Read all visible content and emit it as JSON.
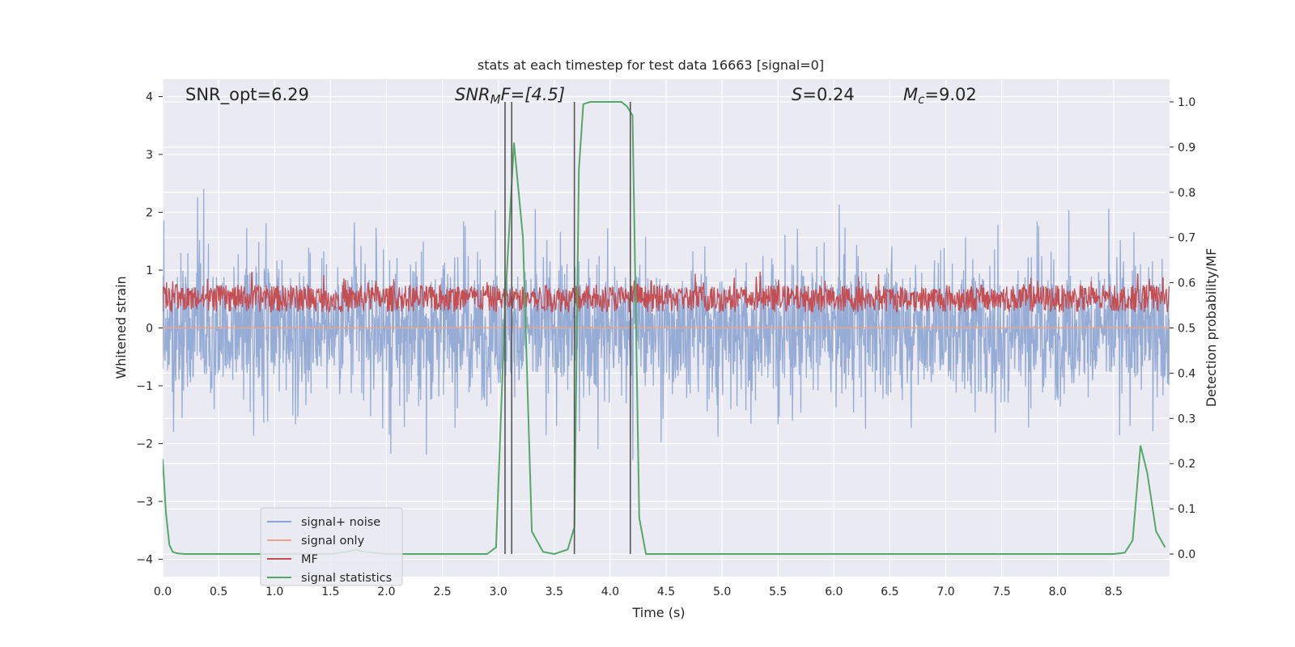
{
  "chart_data": {
    "type": "line",
    "title": "stats at each timestep for test data 16663 [signal=0]",
    "xlabel": "Time (s)",
    "ylabel_left": "Whitened strain",
    "ylabel_right": "Detection probability/MF",
    "xlim": [
      0.0,
      9.0
    ],
    "ylim_left": [
      -4.3,
      4.3
    ],
    "ylim_right": [
      -0.05,
      1.05
    ],
    "xticks": [
      "0.0",
      "0.5",
      "1.0",
      "1.5",
      "2.0",
      "2.5",
      "3.0",
      "3.5",
      "4.0",
      "4.5",
      "5.0",
      "5.5",
      "6.0",
      "6.5",
      "7.0",
      "7.5",
      "8.0",
      "8.5"
    ],
    "yticks_left": [
      "4",
      "3",
      "2",
      "1",
      "0",
      "−1",
      "−2",
      "−3",
      "−4"
    ],
    "yticks_right": [
      "1.0",
      "0.9",
      "0.8",
      "0.7",
      "0.6",
      "0.5",
      "0.4",
      "0.3",
      "0.2",
      "0.1",
      "0.0"
    ],
    "grid": true,
    "legend_position": "lower left",
    "annotations": {
      "snr_opt": "SNR_opt=6.29",
      "snr_mf_base": "SNR",
      "snr_mf_sub": "M",
      "snr_mf_rest": "F=[4.5]",
      "spin_sym": "S",
      "spin_val": "=0.24",
      "mc_sym": "M",
      "mc_sub": "c",
      "mc_val": "=9.02"
    },
    "vlines": [
      3.06,
      3.12,
      3.68,
      4.18
    ],
    "series": [
      {
        "name": "signal+ noise",
        "color": "#8ea5d1",
        "axis": "left",
        "description_range": [
          -4.0,
          4.0
        ]
      },
      {
        "name": "signal only",
        "color": "#e8a58a",
        "axis": "left",
        "x": [
          0.0,
          9.0
        ],
        "y": [
          0.0,
          0.0
        ]
      },
      {
        "name": "MF",
        "color": "#c44e52",
        "axis": "right",
        "description_range": [
          0.5,
          0.64
        ]
      },
      {
        "name": "signal statistics",
        "color": "#55a868",
        "axis": "right",
        "x": [
          0.0,
          0.03,
          0.06,
          0.09,
          0.12,
          0.15,
          0.2,
          0.3,
          0.5,
          1.0,
          1.5,
          1.65,
          1.72,
          1.8,
          2.0,
          2.5,
          2.9,
          2.98,
          3.06,
          3.14,
          3.22,
          3.3,
          3.4,
          3.5,
          3.62,
          3.68,
          3.72,
          3.76,
          3.82,
          3.9,
          4.0,
          4.1,
          4.15,
          4.2,
          4.26,
          4.32,
          4.4,
          4.5,
          5.0,
          6.0,
          7.0,
          8.0,
          8.5,
          8.6,
          8.67,
          8.74,
          8.8,
          8.88,
          8.96
        ],
        "y": [
          0.21,
          0.09,
          0.02,
          0.005,
          0.002,
          0.001,
          0.0,
          0.0,
          0.0,
          0.0,
          0.0,
          0.005,
          0.01,
          0.005,
          0.0,
          0.0,
          0.0,
          0.015,
          0.55,
          0.91,
          0.7,
          0.05,
          0.005,
          0.0,
          0.01,
          0.06,
          0.85,
          0.995,
          1.0,
          1.0,
          1.0,
          1.0,
          0.99,
          0.97,
          0.08,
          0.0,
          0.0,
          0.0,
          0.0,
          0.0,
          0.0,
          0.0,
          0.0,
          0.003,
          0.03,
          0.24,
          0.18,
          0.05,
          0.015
        ]
      }
    ]
  }
}
